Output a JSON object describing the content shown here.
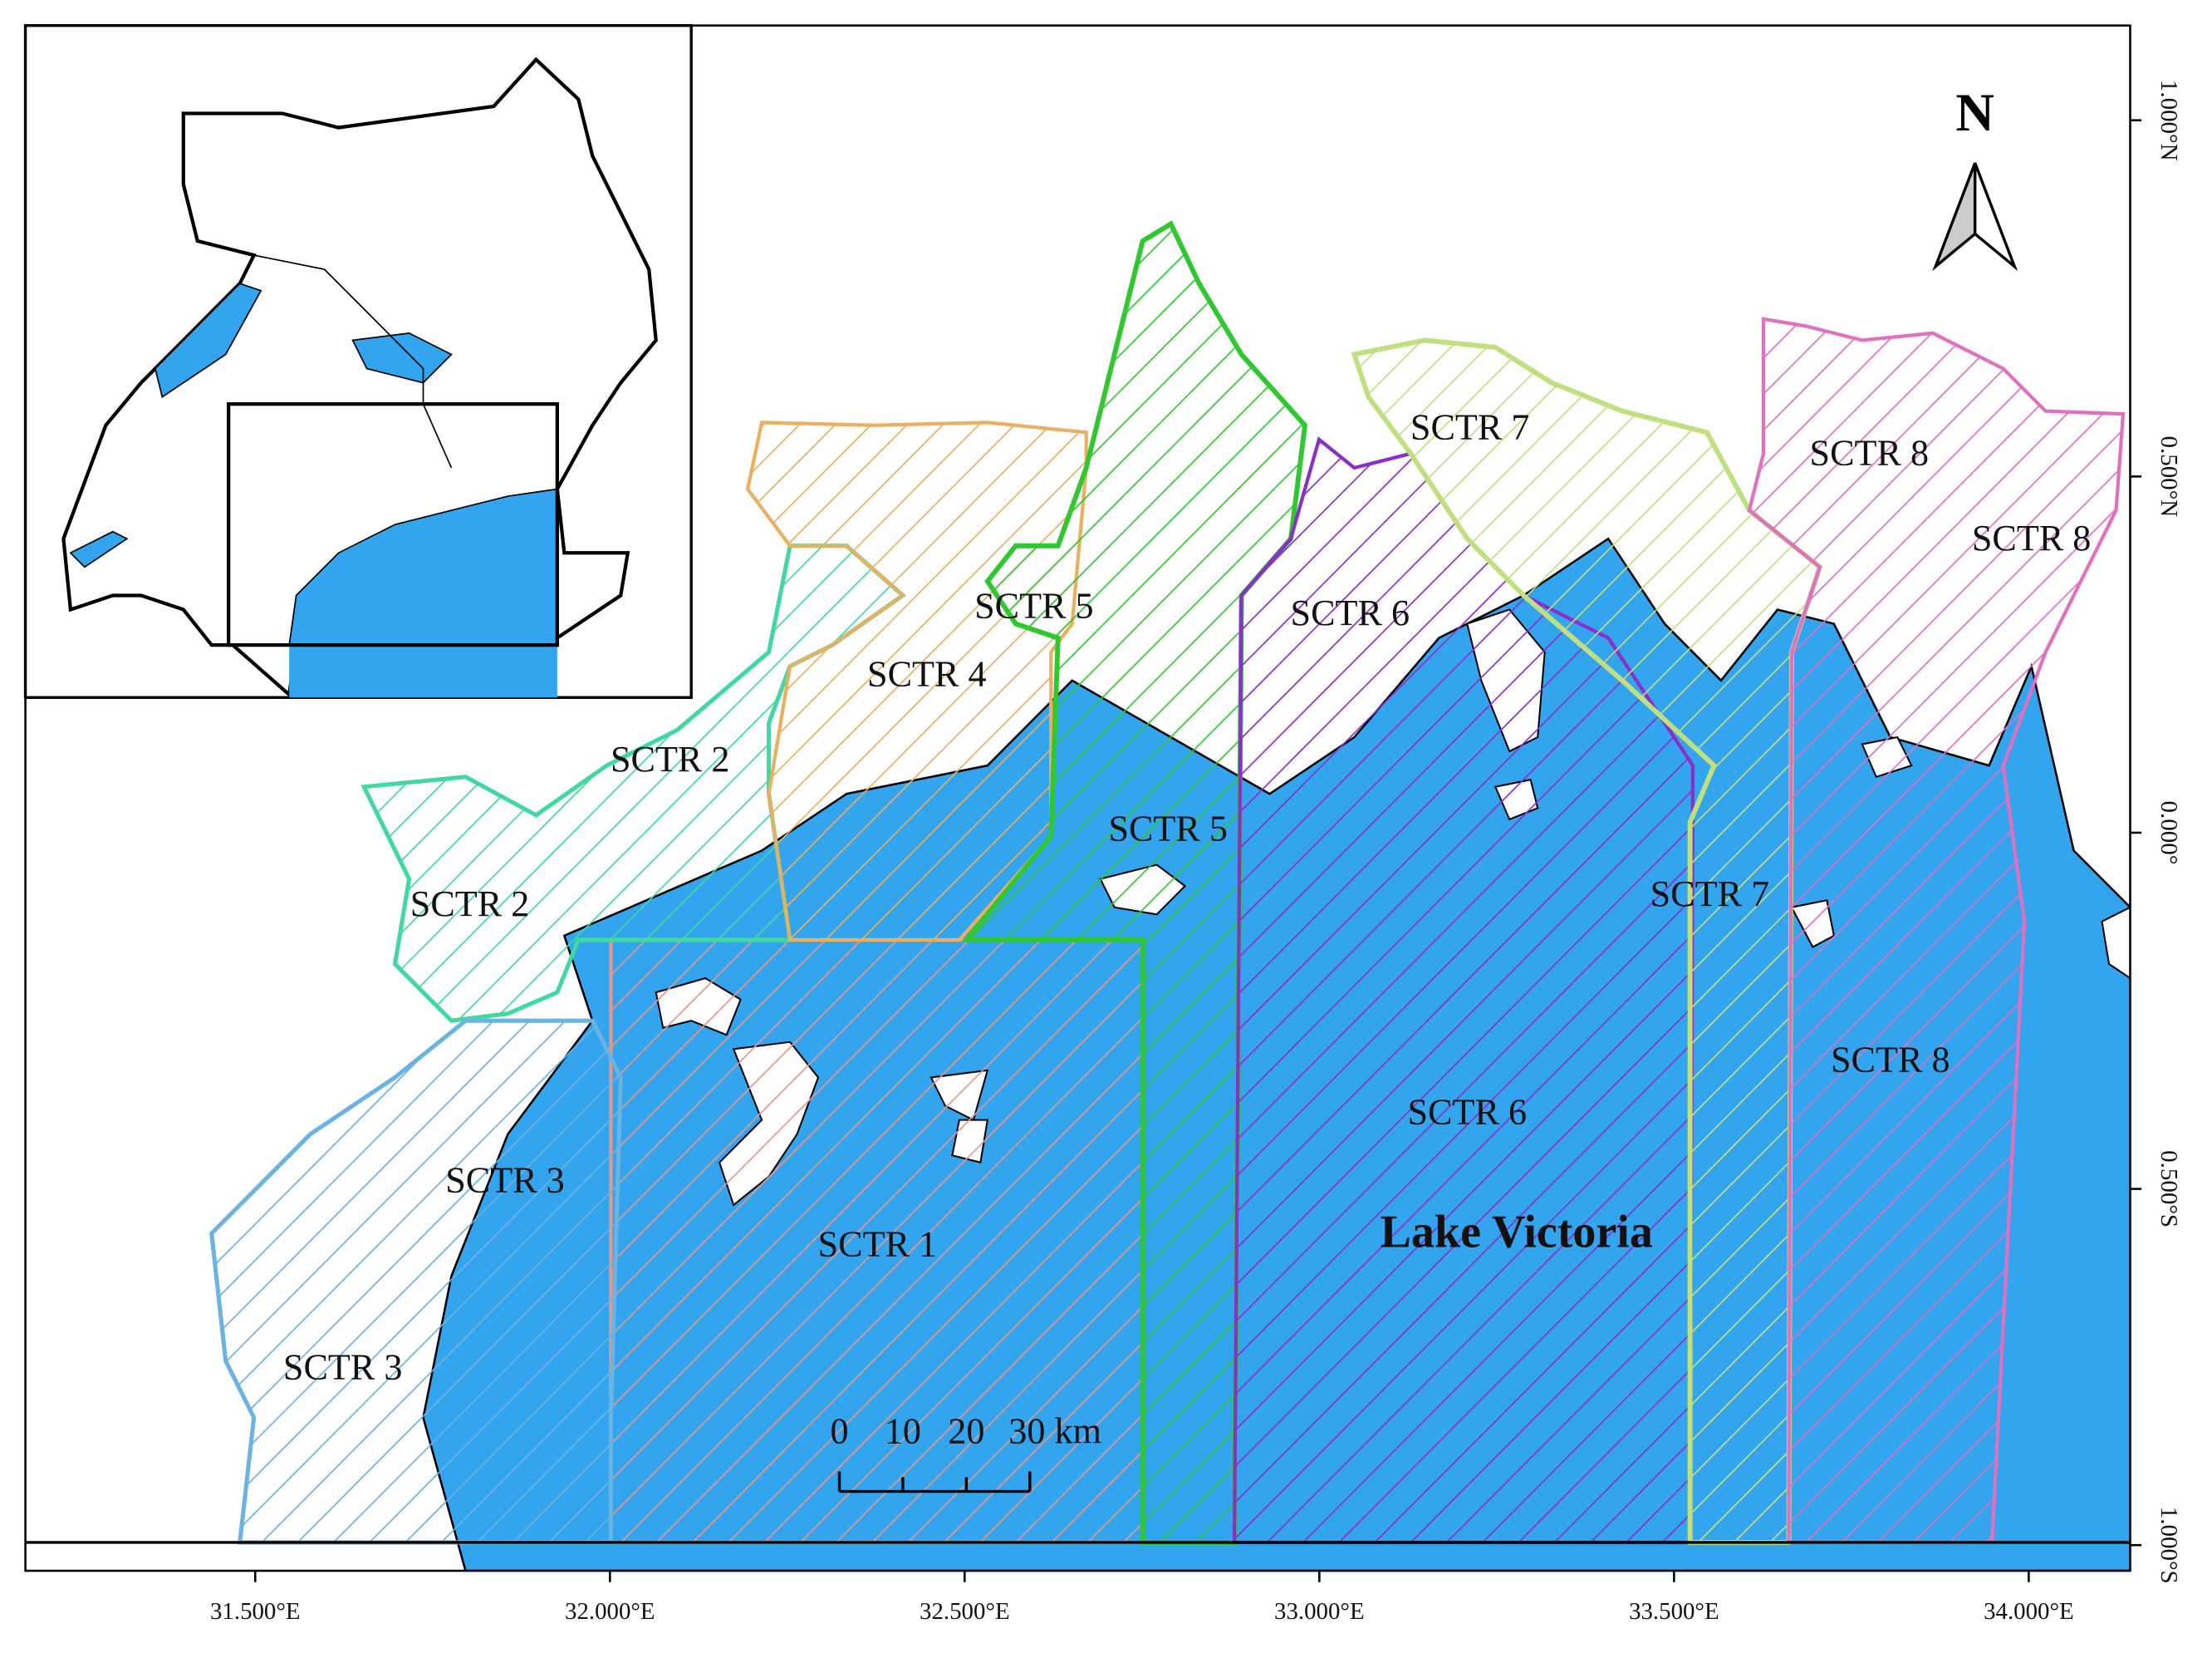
{
  "map": {
    "lon_range": [
      31.176,
      34.143
    ],
    "lat_range": [
      -1.036,
      1.133
    ],
    "lon_ticks": [
      {
        "value": 31.5,
        "label": "31.500°E"
      },
      {
        "value": 32.0,
        "label": "32.000°E"
      },
      {
        "value": 32.5,
        "label": "32.500°E"
      },
      {
        "value": 33.0,
        "label": "33.000°E"
      },
      {
        "value": 33.5,
        "label": "33.500°E"
      },
      {
        "value": 34.0,
        "label": "34.000°E"
      }
    ],
    "lat_ticks": [
      {
        "value": 1.0,
        "label": "1.000°N"
      },
      {
        "value": 0.5,
        "label": "0.500°N"
      },
      {
        "value": 0.0,
        "label": "0.000°"
      },
      {
        "value": -0.5,
        "label": "0.500°S"
      },
      {
        "value": -1.0,
        "label": "1.000°S"
      }
    ],
    "sector_labels": [
      "SCTR 1",
      "SCTR 2",
      "SCTR 2",
      "SCTR 3",
      "SCTR 3",
      "SCTR 4",
      "SCTR 5",
      "SCTR 5",
      "SCTR 6",
      "SCTR 6",
      "SCTR 7",
      "SCTR 7",
      "SCTR 8",
      "SCTR 8",
      "SCTR 8"
    ],
    "lake_label": "Lake Victoria",
    "north_label": "N",
    "scale_labels": [
      "0",
      "10",
      "20",
      "30 km"
    ]
  }
}
